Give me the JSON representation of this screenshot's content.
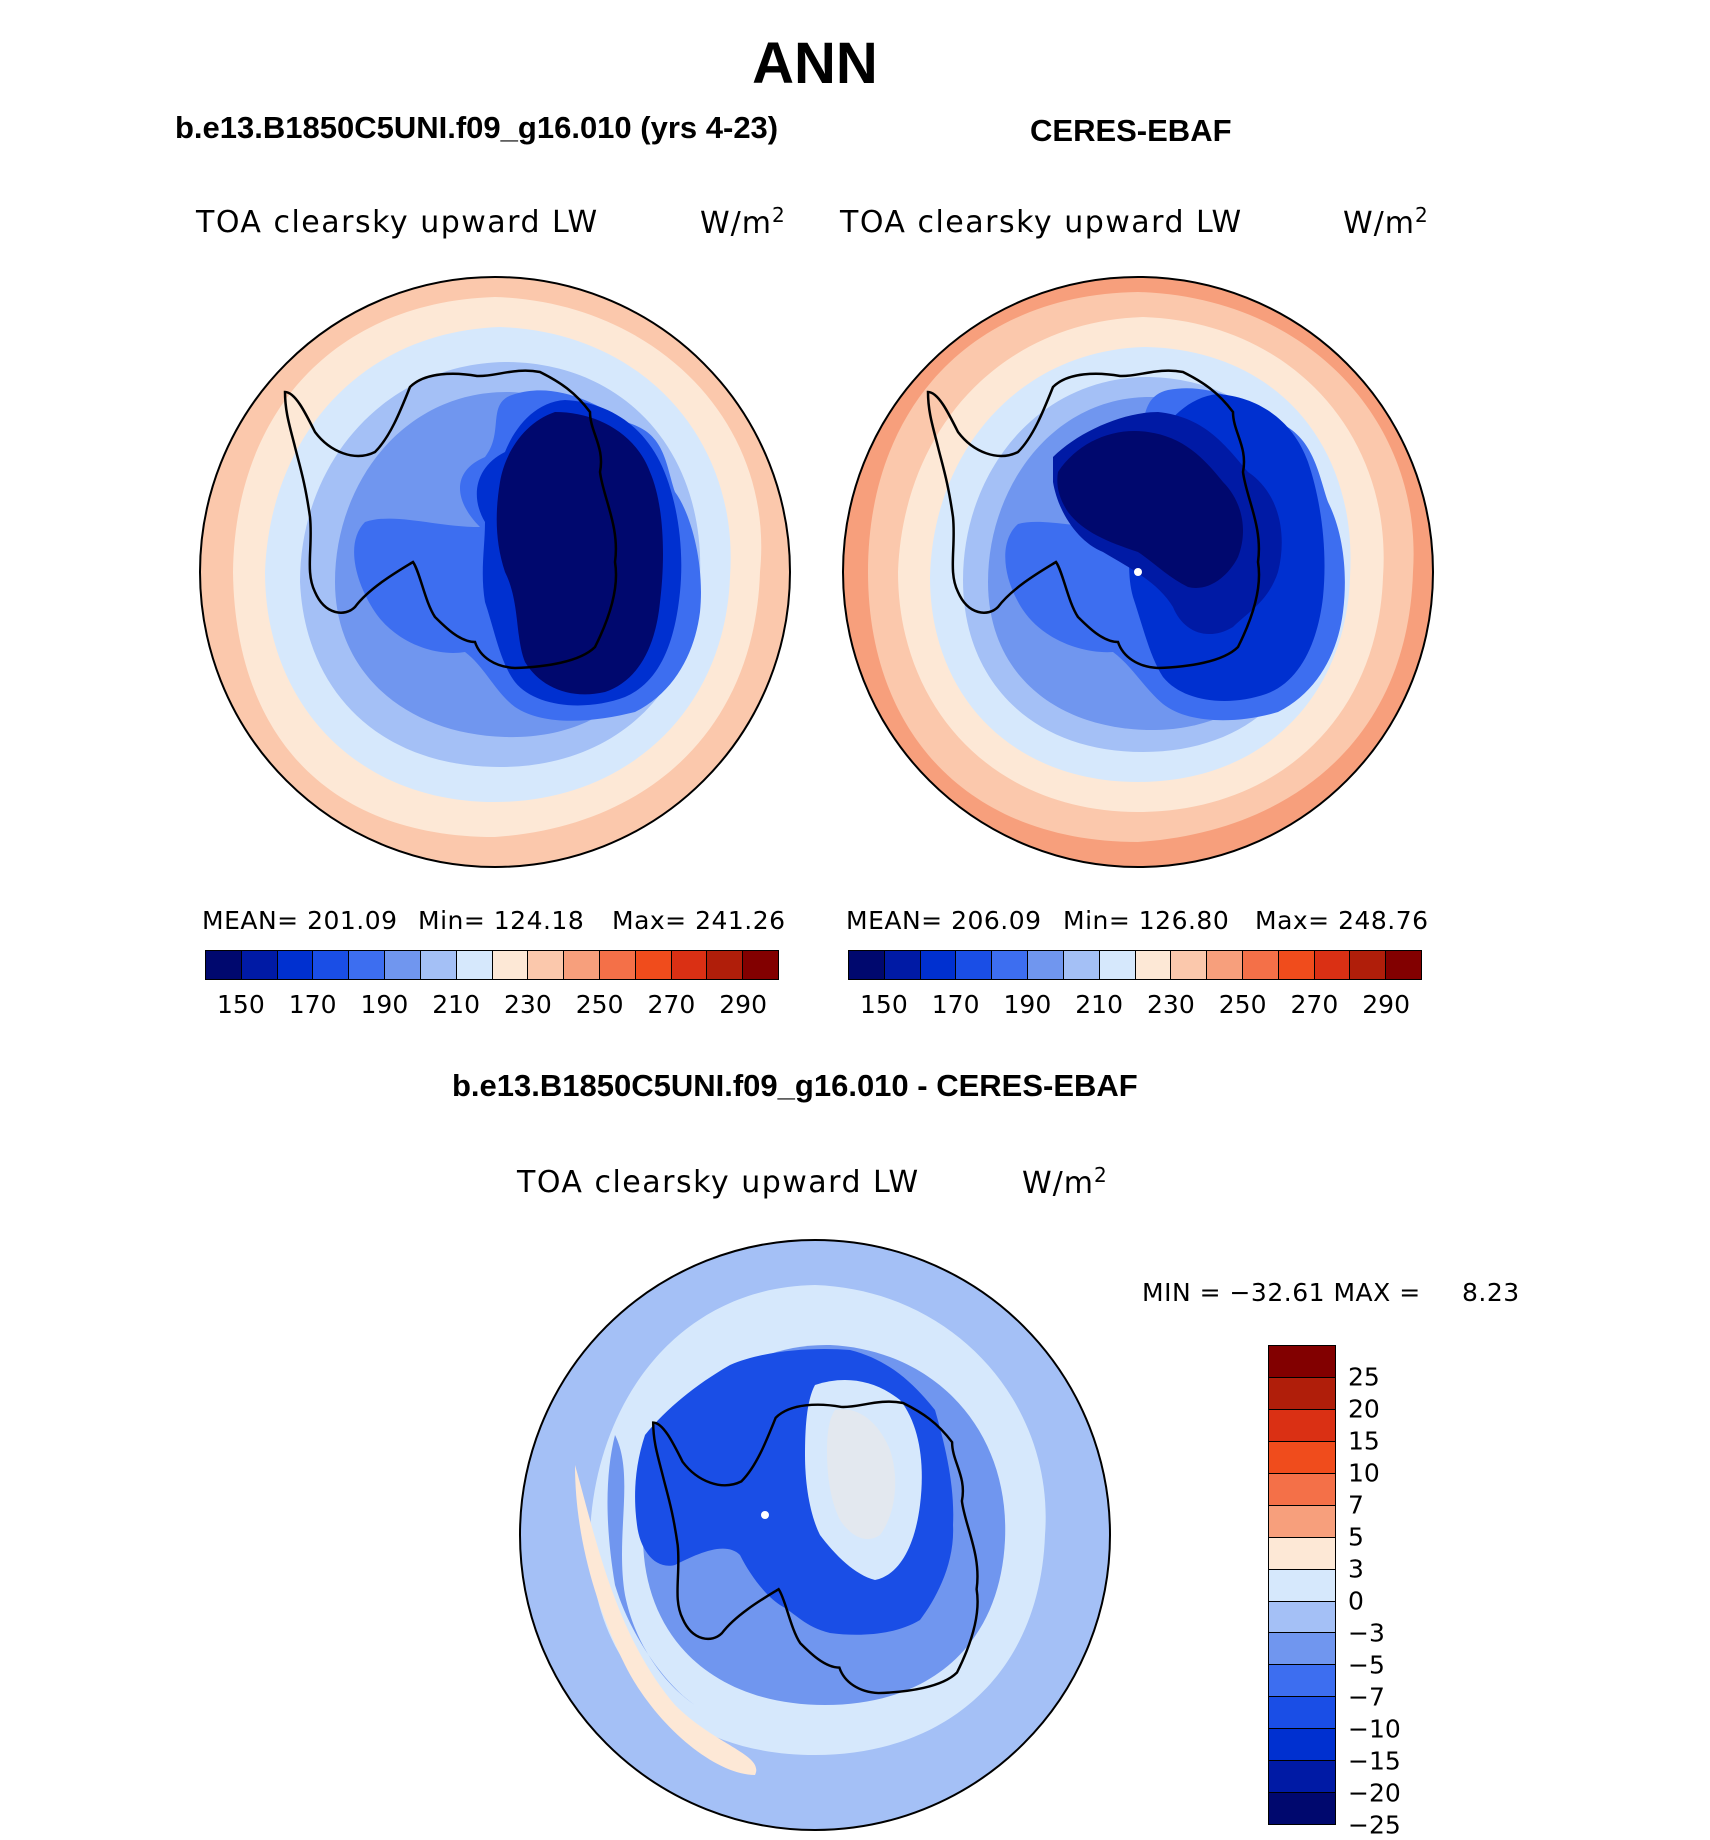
{
  "figure": {
    "season": "ANN",
    "colors": {
      "abs_levels": [
        "#00086e",
        "#001aa5",
        "#0030d0",
        "#1a4ee6",
        "#3d6ef0",
        "#7096ef",
        "#a4c0f6",
        "#d6e8fc",
        "#fde8d6",
        "#fbc8ac",
        "#f79f7c",
        "#f47048",
        "#f04c1c",
        "#da3014",
        "#b01e0a",
        "#820000"
      ],
      "diff_levels": [
        "#820000",
        "#b01e0a",
        "#da3014",
        "#f04c1c",
        "#f47048",
        "#f79f7c",
        "#fde8d6",
        "#d6e8fc",
        "#a4c0f6",
        "#7096ef",
        "#3d6ef0",
        "#1a4ee6",
        "#0030d0",
        "#001aa5",
        "#00086e"
      ]
    }
  },
  "panels": {
    "model": {
      "title": "b.e13.B1850C5UNI.f09_g16.010 (yrs 4-23)",
      "variable": "TOA clearsky upward LW",
      "units_base": "W/m",
      "units_exp": "2",
      "stats_mean": "MEAN= 201.09",
      "stats_min": "Min= 124.18",
      "stats_max": "Max= 241.26"
    },
    "obs": {
      "title": "CERES-EBAF",
      "variable": "TOA clearsky upward LW",
      "units_base": "W/m",
      "units_exp": "2",
      "stats_mean": "MEAN= 206.09",
      "stats_min": "Min= 126.80",
      "stats_max": "Max= 248.76"
    },
    "diff": {
      "title": "b.e13.B1850C5UNI.f09_g16.010 - CERES-EBAF",
      "variable": "TOA clearsky upward LW",
      "units_base": "W/m",
      "units_exp": "2",
      "stats_text": "MIN = −32.61  MAX =",
      "stats_max_value": "8.23"
    }
  },
  "colorbars": {
    "abs_ticks": [
      "150",
      "170",
      "190",
      "210",
      "230",
      "250",
      "270",
      "290"
    ],
    "diff_ticks": [
      "25",
      "20",
      "15",
      "10",
      "7",
      "5",
      "3",
      "0",
      "−3",
      "−5",
      "−7",
      "−10",
      "−15",
      "−20",
      "−25"
    ]
  }
}
